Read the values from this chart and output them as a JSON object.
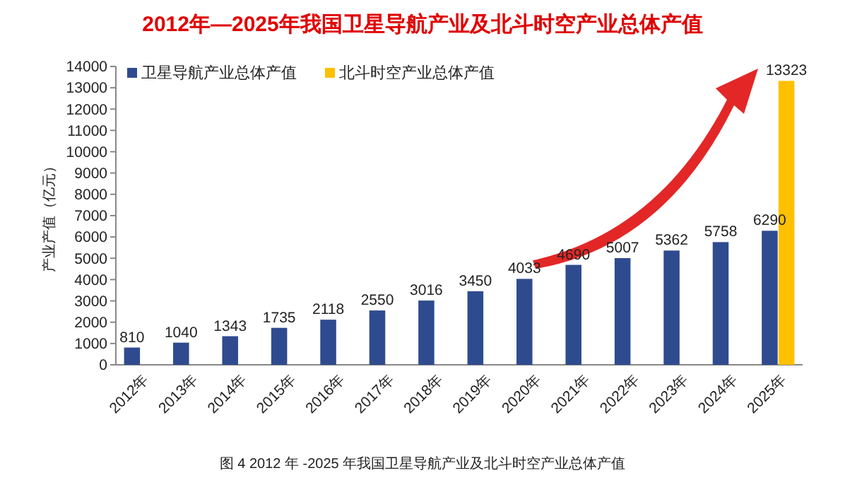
{
  "chart_data": {
    "type": "bar",
    "title": "2012年—2025年我国卫星导航产业及北斗时空产业总体产值",
    "ylabel": "产业产值（亿元）",
    "annotations": [
      "图 4 2012 年 -2025 年我国卫星导航产业及北斗时空产业总体产值"
    ],
    "categories": [
      "2012年",
      "2013年",
      "2014年",
      "2015年",
      "2016年",
      "2017年",
      "2018年",
      "2019年",
      "2020年",
      "2021年",
      "2022年",
      "2023年",
      "2024年",
      "2025年"
    ],
    "series": [
      {
        "name": "卫星导航产业总体产值",
        "color": "#2f4b8f",
        "values": [
          810,
          1040,
          1343,
          1735,
          2118,
          2550,
          3016,
          3450,
          4033,
          4690,
          5007,
          5362,
          5758,
          6290
        ]
      },
      {
        "name": "北斗时空产业总体产值",
        "color": "#ffc000",
        "values": [
          null,
          null,
          null,
          null,
          null,
          null,
          null,
          null,
          null,
          null,
          null,
          null,
          null,
          13323
        ]
      }
    ],
    "ylim": [
      0,
      14000
    ],
    "yticks": [
      0,
      1000,
      2000,
      3000,
      4000,
      5000,
      6000,
      7000,
      8000,
      9000,
      10000,
      11000,
      12000,
      13000,
      14000
    ],
    "data_labels": true,
    "legend": "top left",
    "grid": false
  }
}
